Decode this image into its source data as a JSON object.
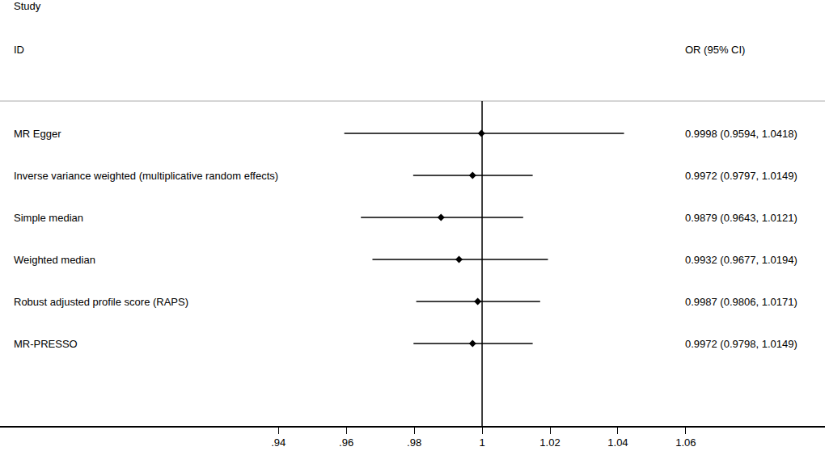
{
  "chart_data": {
    "type": "forest",
    "header": [
      "Study",
      "ID"
    ],
    "estimate_label": "OR (95% CI)",
    "categories": [
      "MR Egger",
      "Inverse variance weighted (multiplicative random effects)",
      "Simple median",
      "Weighted median",
      "Robust adjusted profile score (RAPS)",
      "MR-PRESSO"
    ],
    "values": [
      0.9998,
      0.9972,
      0.9879,
      0.9932,
      0.9987,
      0.9972
    ],
    "ci_lower": [
      0.9594,
      0.9797,
      0.9643,
      0.9677,
      0.9806,
      0.9798
    ],
    "ci_upper": [
      1.0418,
      1.0149,
      1.0121,
      1.0194,
      1.0171,
      1.0149
    ],
    "value_labels": [
      "0.9998 (0.9594, 1.0418)",
      "0.9972 (0.9797, 1.0149)",
      "0.9879 (0.9643, 1.0121)",
      "0.9932 (0.9677, 1.0194)",
      "0.9987 (0.9806, 1.0171)",
      "0.9972 (0.9798, 1.0149)"
    ],
    "xlim": [
      0.858,
      1.101
    ],
    "xticks": [
      {
        "value": 0.94,
        "label": ".94"
      },
      {
        "value": 0.96,
        "label": ".96"
      },
      {
        "value": 0.98,
        "label": ".98"
      },
      1,
      1.02,
      1.04,
      1.06
    ],
    "null_line": 1,
    "color": "#000000",
    "marker": "diamond",
    "tick_labels": "x"
  }
}
